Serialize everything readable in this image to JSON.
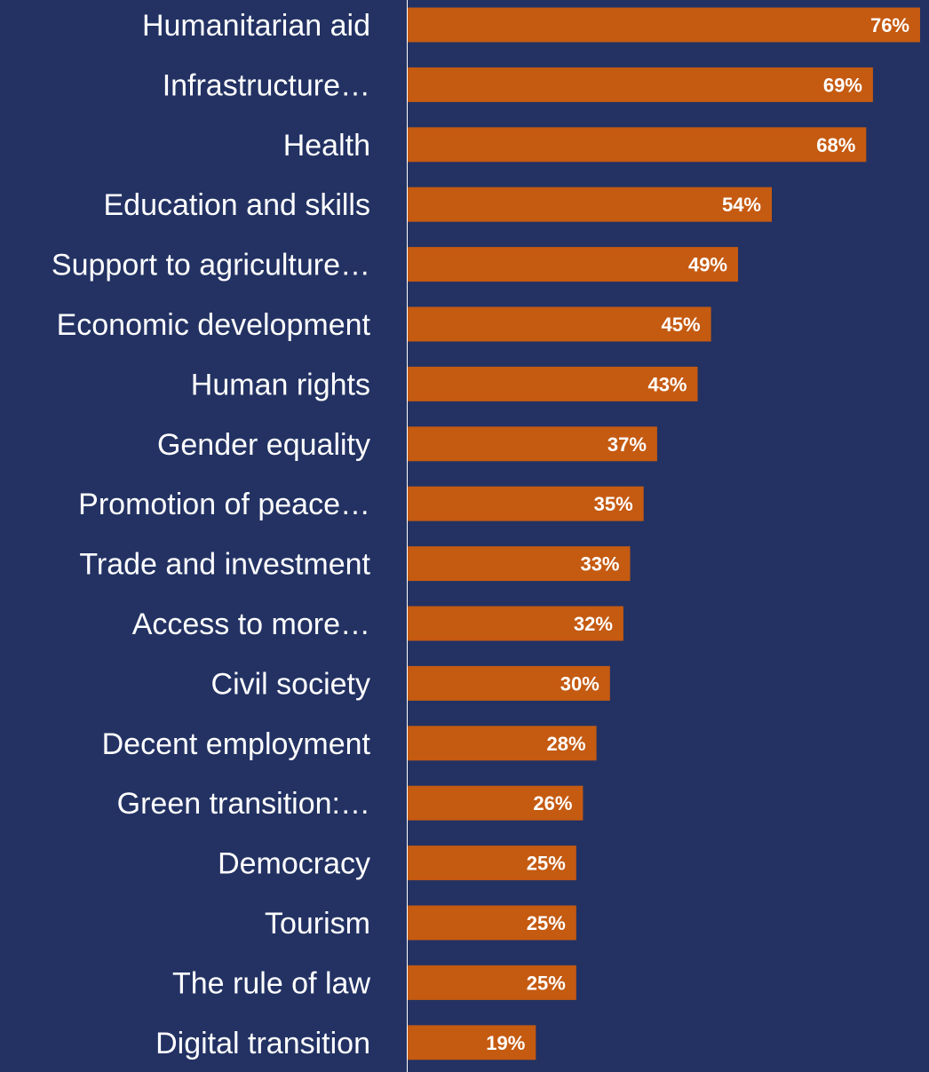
{
  "chart_data": {
    "type": "bar",
    "orientation": "horizontal",
    "categories": [
      "Humanitarian aid",
      "Infrastructure…",
      "Health",
      "Education and skills",
      "Support to agriculture…",
      "Economic development",
      "Human rights",
      "Gender equality",
      "Promotion of peace…",
      "Trade and investment",
      "Access to more…",
      "Civil society",
      "Decent employment",
      "Green transition:…",
      "Democracy",
      "Tourism",
      "The rule of law",
      "Digital transition"
    ],
    "values": [
      76,
      69,
      68,
      54,
      49,
      45,
      43,
      37,
      35,
      33,
      32,
      30,
      28,
      26,
      25,
      25,
      25,
      19
    ],
    "value_labels": [
      "76%",
      "69%",
      "68%",
      "54%",
      "49%",
      "45%",
      "43%",
      "37%",
      "35%",
      "33%",
      "32%",
      "30%",
      "28%",
      "26%",
      "25%",
      "25%",
      "25%",
      "19%"
    ],
    "unit": "%",
    "xlim": [
      0,
      76
    ],
    "grid": false,
    "legend": "none",
    "colors": {
      "background": "#233263",
      "bar": "#c55a11",
      "text": "#ffffff",
      "axis": "#ffffff"
    }
  }
}
